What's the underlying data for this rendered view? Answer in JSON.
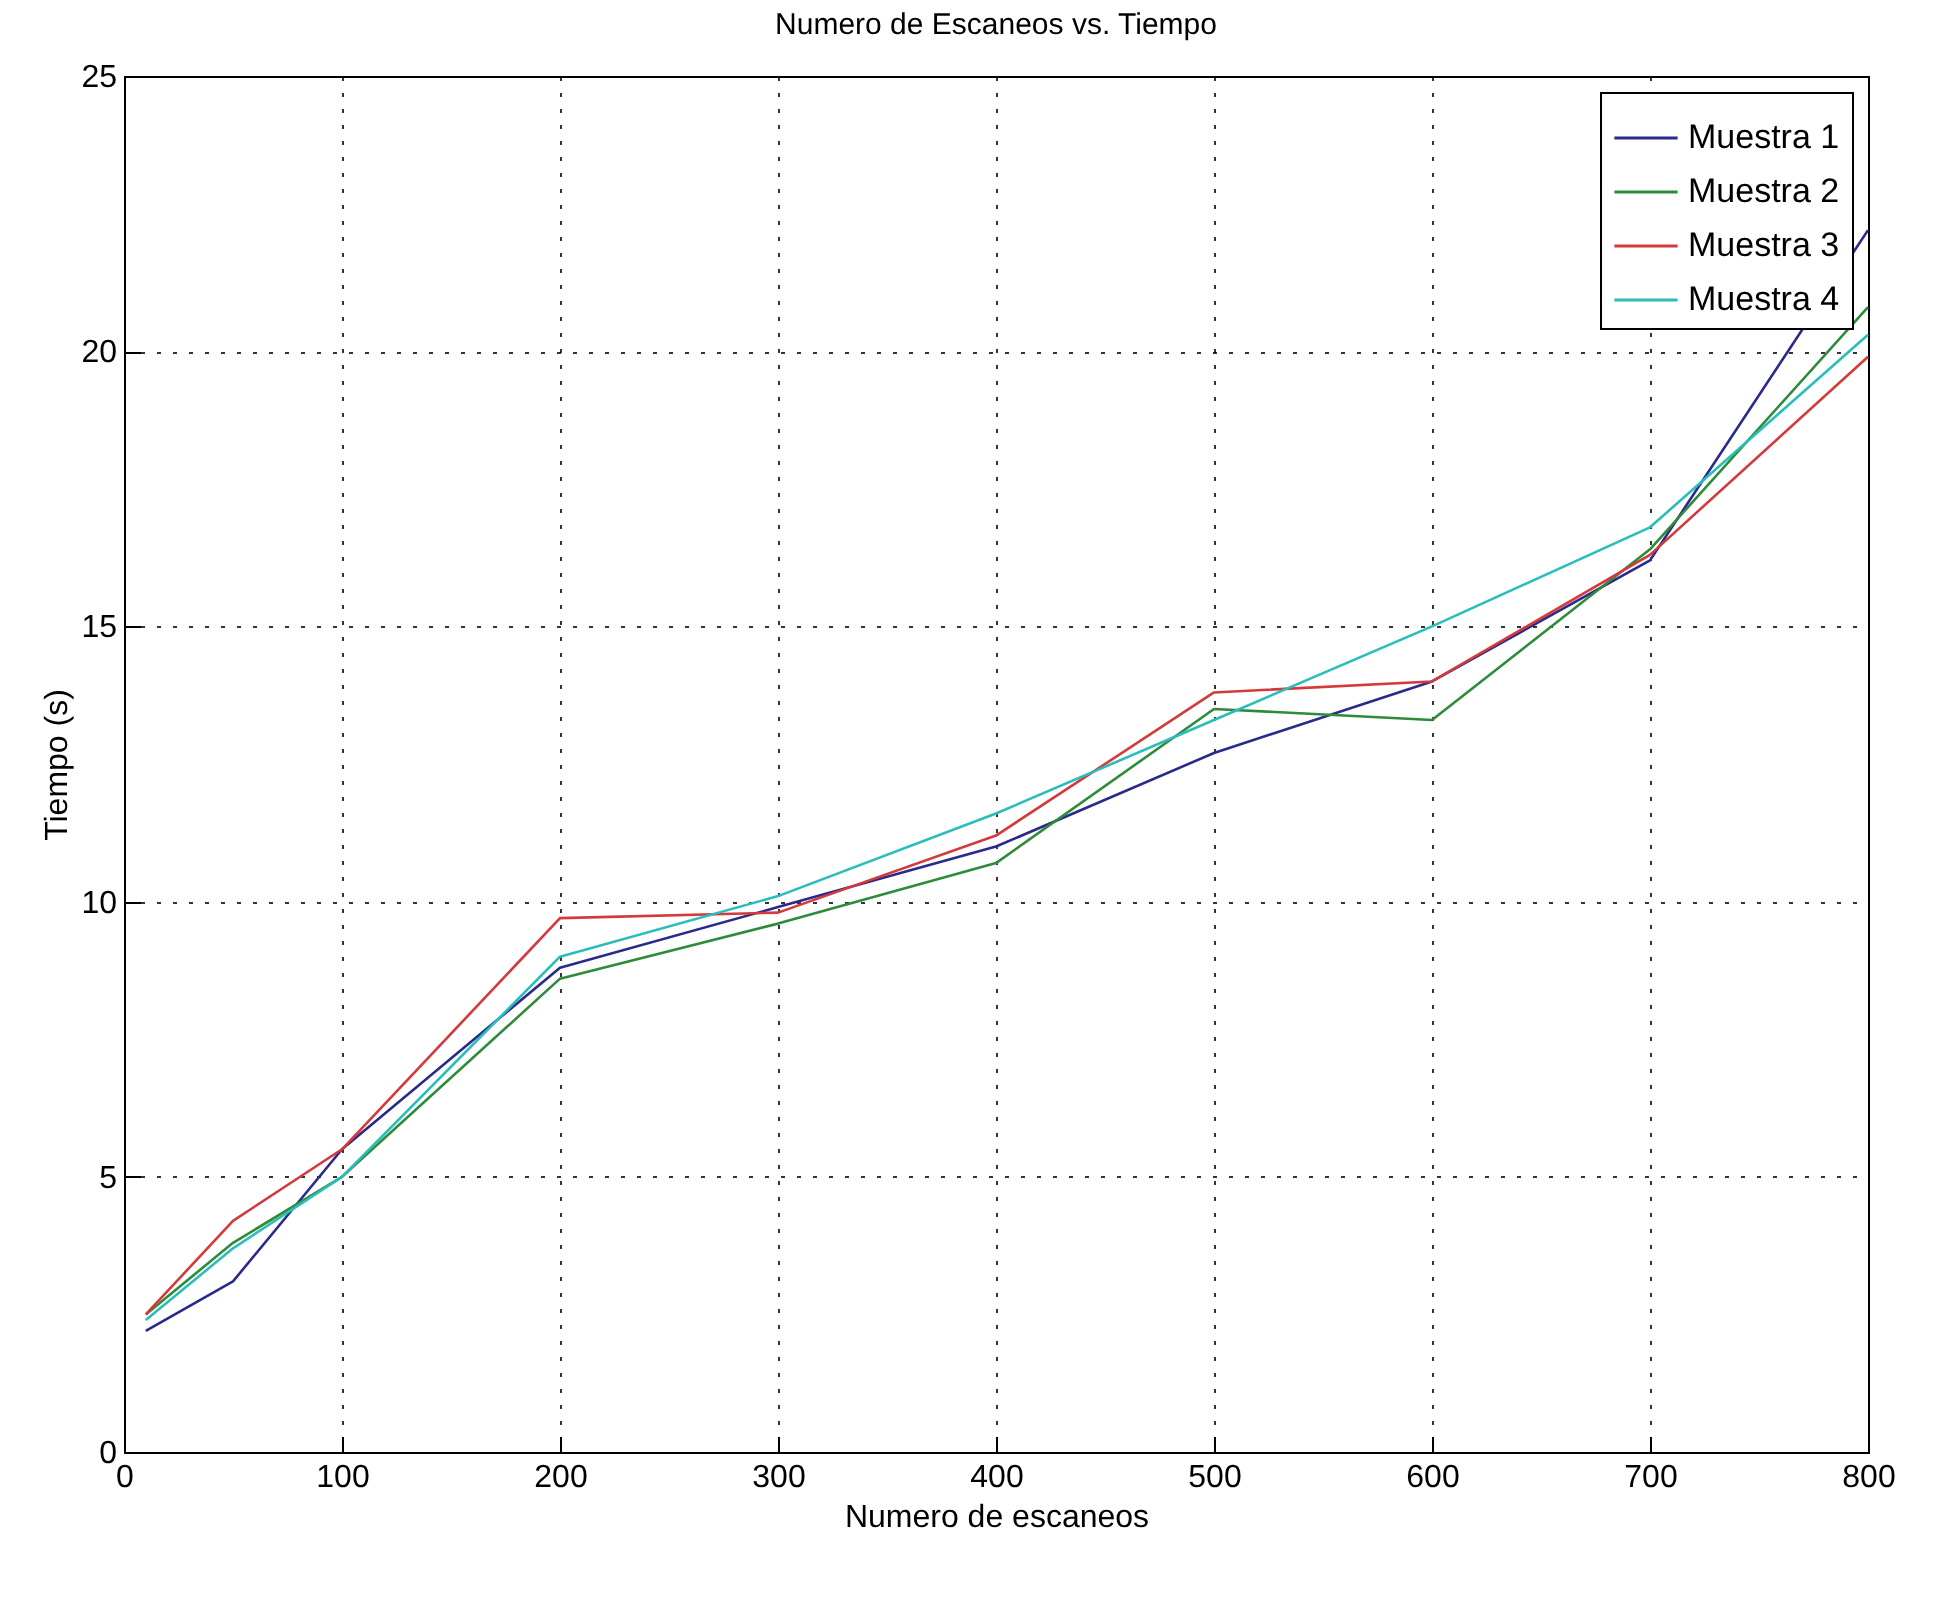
{
  "chart_data": {
    "type": "line",
    "title": "Numero de Escaneos vs. Tiempo",
    "xlabel": "Numero de escaneos",
    "ylabel": "Tiempo (s)",
    "x": [
      10,
      50,
      100,
      200,
      300,
      400,
      500,
      600,
      700,
      800
    ],
    "series": [
      {
        "name": "Muestra 1",
        "color": "#2a2a8c",
        "values": [
          2.2,
          3.1,
          5.5,
          8.8,
          9.9,
          11.0,
          12.7,
          14.0,
          16.2,
          22.2
        ]
      },
      {
        "name": "Muestra 2",
        "color": "#2e8b3a",
        "values": [
          2.5,
          3.8,
          5.0,
          8.6,
          9.6,
          10.7,
          13.5,
          13.3,
          16.4,
          20.8
        ]
      },
      {
        "name": "Muestra 3",
        "color": "#d43a3a",
        "values": [
          2.5,
          4.2,
          5.5,
          9.7,
          9.8,
          11.2,
          13.8,
          14.0,
          16.3,
          19.9
        ]
      },
      {
        "name": "Muestra 4",
        "color": "#2bbcbc",
        "values": [
          2.4,
          3.7,
          5.0,
          9.0,
          10.1,
          11.6,
          13.3,
          15.0,
          16.8,
          20.3
        ]
      }
    ],
    "xlim": [
      0,
      800
    ],
    "xticks": [
      0,
      100,
      200,
      300,
      400,
      500,
      600,
      700,
      800
    ],
    "ylim": [
      0,
      25
    ],
    "yticks": [
      0,
      5,
      10,
      15,
      20,
      25
    ],
    "grid": true,
    "legend": "top right",
    "line_style": "solid",
    "marker": "none"
  }
}
